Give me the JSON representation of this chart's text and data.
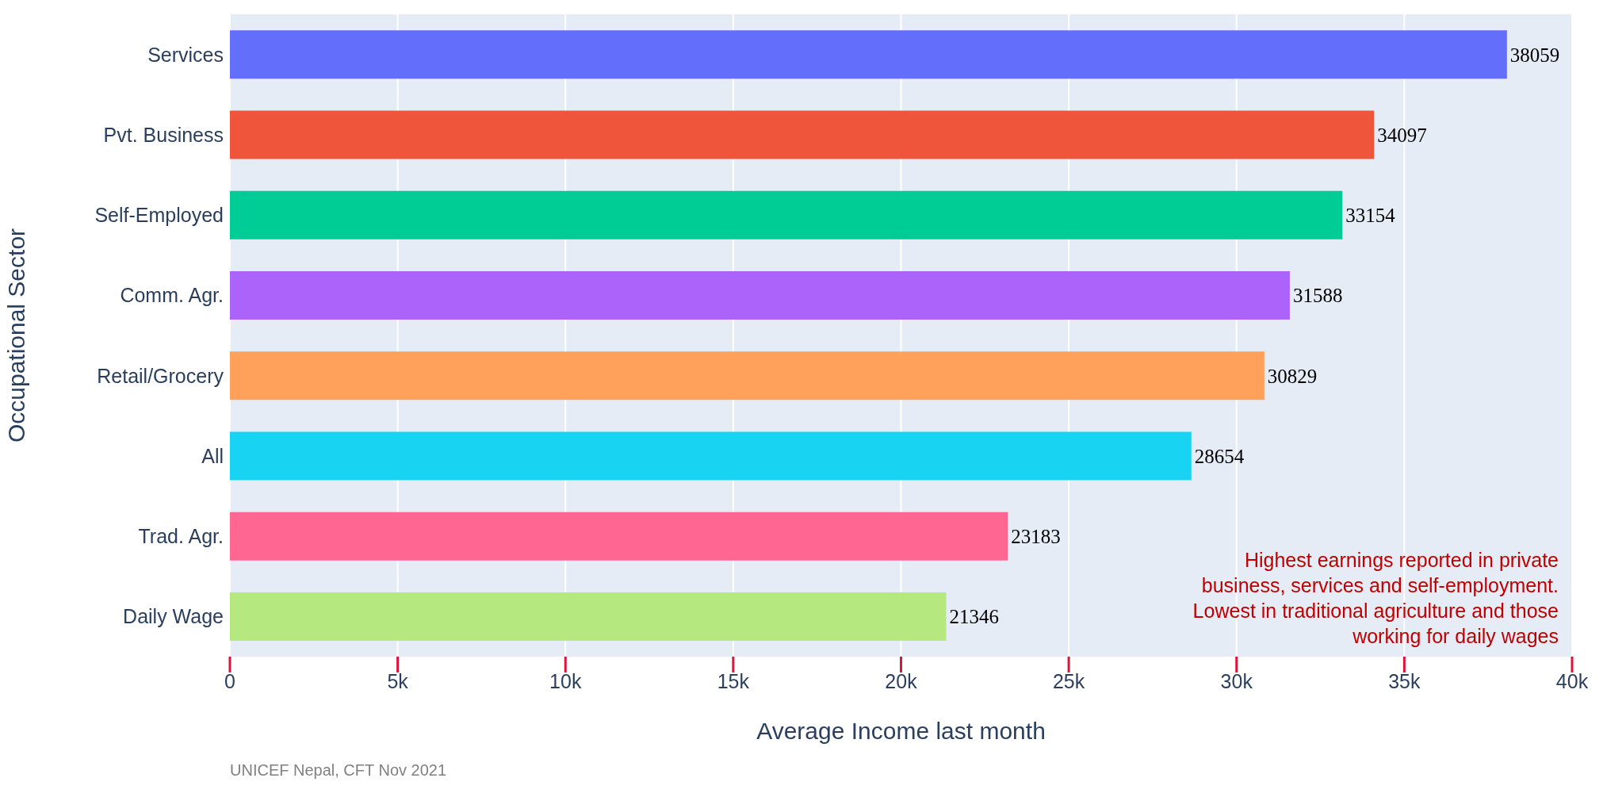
{
  "chart_data": {
    "type": "bar",
    "orientation": "horizontal",
    "categories": [
      "Services",
      "Pvt. Business",
      "Self-Employed",
      "Comm. Agr.",
      "Retail/Grocery",
      "All",
      "Trad. Agr.",
      "Daily Wage"
    ],
    "values": [
      38059,
      34097,
      33154,
      31588,
      30829,
      28654,
      23183,
      21346
    ],
    "colors": [
      "#636efa",
      "#ef553b",
      "#00cc96",
      "#ab63fa",
      "#ffa15a",
      "#19d3f3",
      "#ff6692",
      "#b6e880"
    ],
    "xlim": [
      0,
      40000
    ],
    "xticks": [
      0,
      {
        "value": 5000,
        "label": "5k"
      },
      {
        "value": 10000,
        "label": "10k"
      },
      {
        "value": 15000,
        "label": "15k"
      },
      {
        "value": 20000,
        "label": "20k"
      },
      {
        "value": 25000,
        "label": "25k"
      },
      {
        "value": 30000,
        "label": "30k"
      },
      {
        "value": 35000,
        "label": "35k"
      },
      {
        "value": 40000,
        "label": "40k"
      }
    ],
    "xlabel": "Average Income last month",
    "ylabel": "Occupational Sector",
    "annotations": [
      "Highest earnings reported in private business, services and self-employment. Lowest in traditional agriculture and those working for daily wages",
      "UNICEF Nepal, CFT Nov 2021"
    ],
    "data_labels": true,
    "grid": "x"
  }
}
